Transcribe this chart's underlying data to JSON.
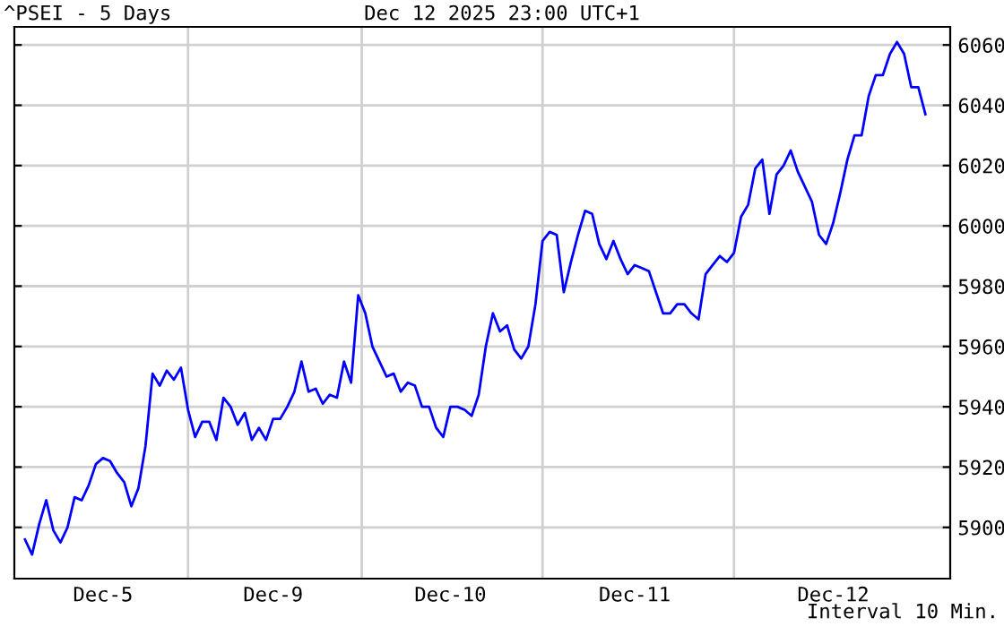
{
  "chart_data": {
    "type": "line",
    "title": "^PSEI - 5 Days",
    "subtitle": "Dec 12 2025 23:00 UTC+1",
    "annotations": [
      "Interval 10 Min."
    ],
    "categories": [
      null,
      null,
      null,
      null,
      null,
      null,
      null,
      null,
      null,
      null,
      null,
      "Dec-5",
      null,
      null,
      null,
      null,
      null,
      null,
      null,
      null,
      null,
      null,
      null,
      null,
      null,
      null,
      null,
      null,
      null,
      null,
      null,
      null,
      null,
      null,
      null,
      "Dec-9",
      null,
      null,
      null,
      null,
      null,
      null,
      null,
      null,
      null,
      null,
      null,
      null,
      null,
      null,
      null,
      null,
      null,
      null,
      null,
      null,
      null,
      null,
      null,
      null,
      "Dec-10",
      null,
      null,
      null,
      null,
      null,
      null,
      null,
      null,
      null,
      null,
      null,
      null,
      null,
      null,
      null,
      null,
      null,
      null,
      null,
      null,
      null,
      null,
      null,
      null,
      null,
      "Dec-11",
      null,
      null,
      null,
      null,
      null,
      null,
      null,
      null,
      null,
      null,
      null,
      null,
      null,
      null,
      null,
      null,
      null,
      null,
      null,
      null,
      null,
      null,
      null,
      null,
      null,
      null,
      null,
      "Dec-12",
      null,
      null,
      null,
      null,
      null,
      null,
      null,
      null,
      null,
      null,
      null,
      null,
      null
    ],
    "series": [
      {
        "color": "#0000ff",
        "values": [
          5896,
          5891,
          5901,
          5909,
          5899,
          5895,
          5900,
          5910,
          5909,
          5914,
          5921,
          5923,
          5922,
          5918,
          5915,
          5907,
          5913,
          5927,
          5951,
          5947,
          5952,
          5949,
          5953,
          5939,
          5930,
          5935,
          5935,
          5929,
          5943,
          5940,
          5934,
          5938,
          5929,
          5933,
          5929,
          5936,
          5936,
          5940,
          5945,
          5955,
          5945,
          5946,
          5941,
          5944,
          5943,
          5955,
          5948,
          5977,
          5971,
          5960,
          5955,
          5950,
          5951,
          5945,
          5948,
          5947,
          5940,
          5940,
          5933,
          5930,
          5940,
          5940,
          5939,
          5937,
          5944,
          5960,
          5971,
          5965,
          5967,
          5959,
          5956,
          5960,
          5974,
          5995,
          5998,
          5997,
          5978,
          5988,
          5997,
          6005,
          6004,
          5994,
          5989,
          5995,
          5989,
          5984,
          5987,
          5986,
          5985,
          5978,
          5971,
          5971,
          5974,
          5974,
          5971,
          5969,
          5984,
          5987,
          5990,
          5988,
          5991,
          6003,
          6007,
          6019,
          6022,
          6004,
          6017,
          6020,
          6025,
          6018,
          6013,
          6008,
          5997,
          5994,
          6001,
          6011,
          6022,
          6030,
          6030,
          6043,
          6050,
          6050,
          6057,
          6061,
          6057,
          6046,
          6046,
          6037
        ]
      }
    ],
    "ylim": [
      5883,
      6066
    ],
    "yticks": [
      5900,
      5920,
      5940,
      5960,
      5980,
      6000,
      6020,
      6040,
      6060
    ],
    "grid": true,
    "legend": false,
    "marker": "none",
    "line_style": "solid"
  }
}
